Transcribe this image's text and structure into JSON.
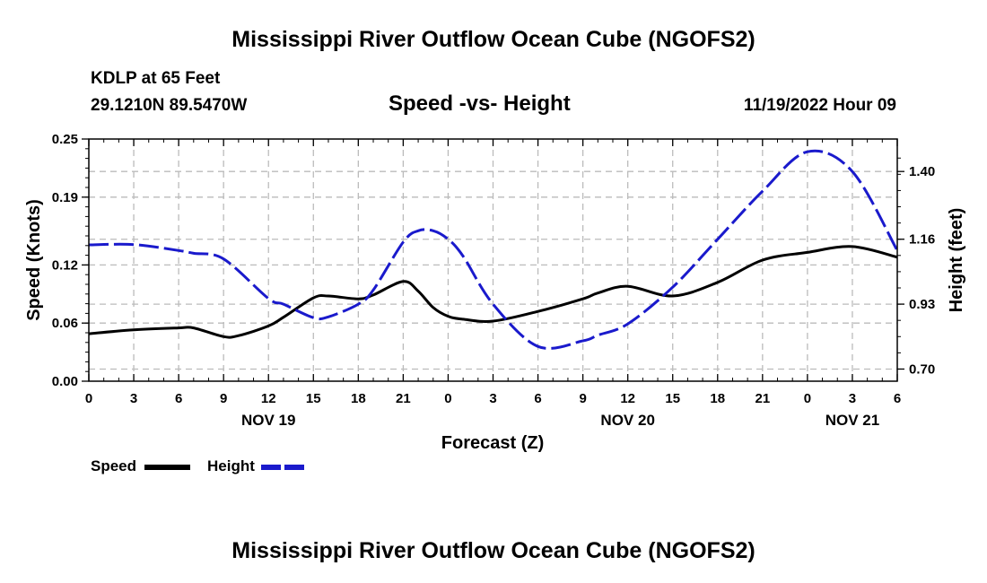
{
  "page": {
    "title": "Mississippi River Outflow Ocean Cube (NGOFS2)",
    "footer_title": "Mississippi River Outflow Ocean Cube (NGOFS2)",
    "station": "KDLP at 65 Feet",
    "coordinates": "29.1210N  89.5470W",
    "subtitle": "Speed -vs- Height",
    "datetime": "11/19/2022 Hour 09"
  },
  "legend": {
    "speed_label": "Speed",
    "height_label": "Height"
  },
  "colors": {
    "speed": "#000000",
    "height": "#1a1acc",
    "grid": "#bbbbbb"
  },
  "chart_data": {
    "type": "line",
    "title": "Speed -vs- Height",
    "xlabel": "Forecast (Z)",
    "ylabel": "Speed (Knots)",
    "y2label": "Height (feet)",
    "x_range_hours": [
      0,
      54
    ],
    "x_ticks": [
      0,
      3,
      6,
      9,
      12,
      15,
      18,
      21,
      24,
      27,
      30,
      33,
      36,
      39,
      42,
      45,
      48,
      51,
      54
    ],
    "x_tick_labels": [
      "0",
      "3",
      "6",
      "9",
      "12",
      "15",
      "18",
      "21",
      "0",
      "3",
      "6",
      "9",
      "12",
      "15",
      "18",
      "21",
      "0",
      "3",
      "6"
    ],
    "date_labels": [
      {
        "hour": 12,
        "label": "NOV 19"
      },
      {
        "hour": 36,
        "label": "NOV 20"
      },
      {
        "hour": 51,
        "label": "NOV 21"
      }
    ],
    "ylim": [
      0,
      0.25
    ],
    "y_ticks": [
      0.0,
      0.06,
      0.12,
      0.19,
      0.25
    ],
    "y_tick_labels": [
      "0.00",
      "0.06",
      "0.12",
      "0.19",
      "0.25"
    ],
    "y2lim": [
      0.657,
      1.515
    ],
    "y2_ticks": [
      0.7,
      0.93,
      1.16,
      1.4
    ],
    "y2_tick_labels": [
      "0.70",
      "0.93",
      "1.16",
      "1.40"
    ],
    "series": [
      {
        "name": "Speed",
        "axis": "left",
        "style": "solid",
        "x": [
          0,
          3,
          6,
          7,
          9,
          10,
          12,
          13,
          15,
          16,
          18,
          19,
          21,
          22,
          23,
          24,
          25,
          27,
          30,
          33,
          34,
          36,
          39,
          42,
          45,
          48,
          51,
          54
        ],
        "values": [
          0.049,
          0.053,
          0.055,
          0.055,
          0.046,
          0.047,
          0.057,
          0.066,
          0.086,
          0.088,
          0.085,
          0.089,
          0.103,
          0.093,
          0.076,
          0.067,
          0.064,
          0.062,
          0.072,
          0.085,
          0.091,
          0.098,
          0.088,
          0.102,
          0.125,
          0.133,
          0.139,
          0.128
        ]
      },
      {
        "name": "Height",
        "axis": "right",
        "style": "dashed",
        "x": [
          0,
          3,
          6,
          7,
          9,
          12,
          13,
          15,
          16,
          18,
          19,
          21,
          22,
          23,
          24,
          25,
          27,
          30,
          33,
          34,
          36,
          39,
          42,
          45,
          48,
          51,
          54
        ],
        "values": [
          1.14,
          1.141,
          1.12,
          1.11,
          1.09,
          0.95,
          0.93,
          0.882,
          0.885,
          0.93,
          0.98,
          1.15,
          1.19,
          1.19,
          1.16,
          1.1,
          0.93,
          0.78,
          0.8,
          0.82,
          0.86,
          0.99,
          1.16,
          1.33,
          1.47,
          1.4,
          1.12
        ]
      }
    ]
  }
}
